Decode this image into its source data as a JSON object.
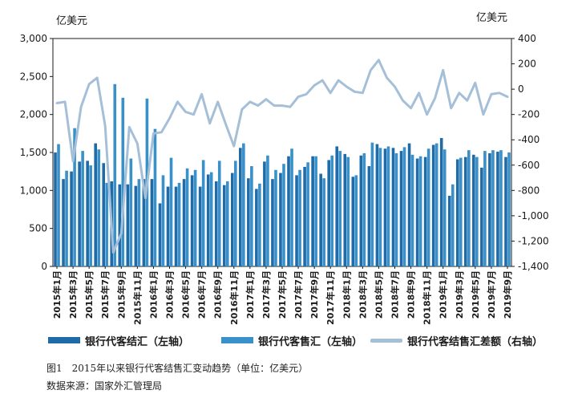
{
  "left_unit": "亿美元",
  "right_unit": "亿美元",
  "caption": "图1　2015年以来银行代客结售汇变动趋势（单位：亿美元）",
  "source": "数据来源：国家外汇管理局",
  "legend": {
    "settlement": "银行代客结汇（左轴）",
    "sale": "银行代客售汇（左轴）",
    "balance": "银行代客结售汇差额（右轴）"
  },
  "colors": {
    "settlement": "#1f6ba8",
    "sale": "#3a91c9",
    "balance": "#a6bfd8"
  },
  "chart_data": {
    "type": "bar",
    "categories": [
      "2015年1月",
      "2015年2月",
      "2015年3月",
      "2015年4月",
      "2015年5月",
      "2015年6月",
      "2015年7月",
      "2015年8月",
      "2015年9月",
      "2015年10月",
      "2015年11月",
      "2015年12月",
      "2016年1月",
      "2016年2月",
      "2016年3月",
      "2016年4月",
      "2016年5月",
      "2016年6月",
      "2016年7月",
      "2016年8月",
      "2016年9月",
      "2016年10月",
      "2016年11月",
      "2016年12月",
      "2017年1月",
      "2017年2月",
      "2017年3月",
      "2017年4月",
      "2017年5月",
      "2017年6月",
      "2017年7月",
      "2017年8月",
      "2017年9月",
      "2017年10月",
      "2017年11月",
      "2017年12月",
      "2018年1月",
      "2018年2月",
      "2018年3月",
      "2018年4月",
      "2018年5月",
      "2018年6月",
      "2018年7月",
      "2018年8月",
      "2018年9月",
      "2018年10月",
      "2018年11月",
      "2018年12月",
      "2019年1月",
      "2019年2月",
      "2019年3月",
      "2019年4月",
      "2019年5月",
      "2019年6月",
      "2019年7月",
      "2019年8月",
      "2019年9月"
    ],
    "xtick_labels": [
      "2015年1月",
      "2015年3月",
      "2015年5月",
      "2015年7月",
      "2015年9月",
      "2015年11月",
      "2016年1月",
      "2016年3月",
      "2016年5月",
      "2016年7月",
      "2016年9月",
      "2016年11月",
      "2017年1月",
      "2017年3月",
      "2017年5月",
      "2017年7月",
      "2017年9月",
      "2017年11月",
      "2018年1月",
      "2018年3月",
      "2018年5月",
      "2018年7月",
      "2018年9月",
      "2018年11月",
      "2019年1月",
      "2019年3月",
      "2019年5月",
      "2019年7月",
      "2019年9月"
    ],
    "series": [
      {
        "name": "银行代客结汇（左轴）",
        "axis": "left",
        "type": "bar",
        "values": [
          1500,
          1150,
          1250,
          1380,
          1390,
          1620,
          1360,
          1120,
          1080,
          1080,
          1060,
          1150,
          1150,
          830,
          1050,
          1050,
          1150,
          1200,
          1050,
          1210,
          1120,
          1070,
          1230,
          1560,
          1160,
          1020,
          1380,
          1150,
          1230,
          1450,
          1200,
          1310,
          1450,
          1220,
          1400,
          1580,
          1480,
          1180,
          1460,
          1320,
          1610,
          1550,
          1560,
          1520,
          1620,
          1420,
          1440,
          1600,
          1690,
          930,
          1410,
          1440,
          1470,
          1300,
          1490,
          1510,
          1440
        ]
      },
      {
        "name": "银行代客售汇（左轴）",
        "axis": "left",
        "type": "bar",
        "values": [
          1610,
          1260,
          1820,
          1520,
          1330,
          1540,
          1100,
          2400,
          2220,
          1420,
          1150,
          2210,
          1810,
          1200,
          1430,
          1100,
          1290,
          1270,
          1400,
          1240,
          1390,
          1120,
          1390,
          1620,
          1320,
          1090,
          1460,
          1270,
          1350,
          1550,
          1270,
          1370,
          1450,
          1160,
          1460,
          1520,
          1440,
          1200,
          1490,
          1630,
          1560,
          1580,
          1490,
          1570,
          1470,
          1450,
          1550,
          1620,
          1540,
          1080,
          1430,
          1530,
          1440,
          1520,
          1530,
          1530,
          1500
        ]
      },
      {
        "name": "银行代客结售汇差额（右轴）",
        "axis": "right",
        "type": "line",
        "values": [
          -110,
          -100,
          -570,
          -140,
          40,
          90,
          -290,
          -1290,
          -1140,
          -300,
          -430,
          -860,
          -350,
          -340,
          -230,
          -100,
          -180,
          -200,
          -40,
          -270,
          -100,
          -280,
          -450,
          -160,
          -100,
          -130,
          -80,
          -130,
          -130,
          -140,
          -60,
          -40,
          30,
          70,
          -30,
          70,
          20,
          -20,
          -30,
          150,
          230,
          90,
          20,
          -90,
          -150,
          -30,
          -200,
          -70,
          150,
          -150,
          -30,
          -90,
          50,
          -200,
          -40,
          -30,
          -60
        ]
      }
    ],
    "ylim_left": [
      0,
      3000
    ],
    "yticks_left": [
      "0",
      "500",
      "1,000",
      "1,500",
      "2,000",
      "2,500",
      "3,000"
    ],
    "ylim_right": [
      -1400,
      400
    ],
    "yticks_right": [
      "-1,400",
      "-1,200",
      "-1,000",
      "-800",
      "-600",
      "-400",
      "-200",
      "0",
      "200",
      "400"
    ],
    "grid": false,
    "legend_position": "bottom"
  }
}
